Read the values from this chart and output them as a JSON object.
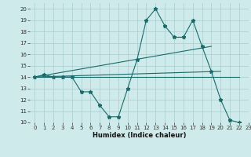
{
  "title": "",
  "xlabel": "Humidex (Indice chaleur)",
  "ylabel": "",
  "background_color": "#ceeaea",
  "line_color": "#1a6b6b",
  "grid_color": "#aacccc",
  "xlim": [
    -0.5,
    23
  ],
  "ylim": [
    10,
    20.5
  ],
  "xticks": [
    0,
    1,
    2,
    3,
    4,
    5,
    6,
    7,
    8,
    9,
    10,
    11,
    12,
    13,
    14,
    15,
    16,
    17,
    18,
    19,
    20,
    21,
    22,
    23
  ],
  "yticks": [
    10,
    11,
    12,
    13,
    14,
    15,
    16,
    17,
    18,
    19,
    20
  ],
  "series_main": {
    "x": [
      0,
      1,
      2,
      3,
      4,
      5,
      6,
      7,
      8,
      9,
      10,
      11,
      12,
      13,
      14,
      15,
      16,
      17,
      18,
      19,
      20,
      21,
      22
    ],
    "y": [
      14,
      14.2,
      14,
      14,
      14,
      12.7,
      12.7,
      11.5,
      10.5,
      10.5,
      13,
      15.5,
      19,
      20,
      18.5,
      17.5,
      17.5,
      19,
      16.7,
      14.5,
      12,
      10.2,
      10
    ]
  },
  "series_flat": {
    "x": [
      0,
      22
    ],
    "y": [
      14,
      14
    ]
  },
  "series_rising": {
    "x": [
      0,
      19
    ],
    "y": [
      14,
      16.7
    ]
  },
  "series_slight": {
    "x": [
      0,
      20
    ],
    "y": [
      14,
      14.5
    ]
  }
}
